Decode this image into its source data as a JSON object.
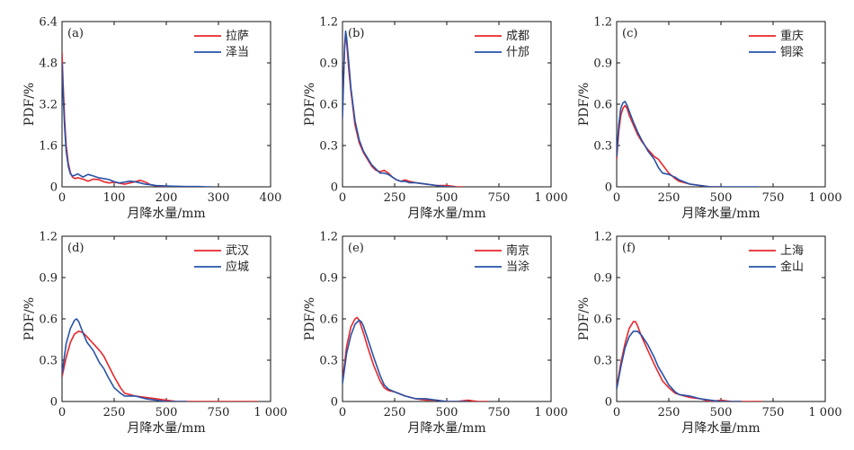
{
  "chart_data": [
    {
      "type": "line",
      "panel_label": "(a)",
      "xlabel": "月降水量/mm",
      "ylabel": "PDF/%",
      "xlim": [
        0,
        400
      ],
      "ylim": [
        0,
        6.4
      ],
      "xticks": [
        0,
        100,
        200,
        300,
        400
      ],
      "xtick_labels": [
        "0",
        "100",
        "200",
        "300",
        "400"
      ],
      "yticks": [
        0,
        1.6,
        3.2,
        4.8,
        6.4
      ],
      "ytick_labels": [
        "0",
        "1.6",
        "3.2",
        "4.8",
        "6.4"
      ],
      "legend_position": "top-right",
      "series": [
        {
          "name": "拉萨",
          "color": "#e8262b",
          "x": [
            0,
            2,
            5,
            8,
            12,
            16,
            20,
            25,
            30,
            40,
            50,
            60,
            70,
            80,
            90,
            100,
            110,
            120,
            130,
            140,
            150,
            160,
            170,
            180,
            200,
            220,
            240,
            260
          ],
          "y": [
            5.2,
            4.0,
            2.6,
            1.6,
            0.9,
            0.55,
            0.38,
            0.32,
            0.35,
            0.3,
            0.22,
            0.3,
            0.28,
            0.2,
            0.15,
            0.18,
            0.14,
            0.1,
            0.15,
            0.2,
            0.25,
            0.18,
            0.08,
            0.04,
            0.02,
            0.01,
            0.0,
            0.0
          ]
        },
        {
          "name": "泽当",
          "color": "#2752a8",
          "x": [
            0,
            2,
            5,
            8,
            12,
            16,
            20,
            25,
            30,
            40,
            50,
            60,
            70,
            80,
            90,
            100,
            110,
            120,
            130,
            140,
            150,
            160,
            170,
            180,
            200,
            220,
            240,
            260,
            280,
            290
          ],
          "y": [
            4.8,
            3.6,
            2.3,
            1.4,
            0.8,
            0.5,
            0.42,
            0.45,
            0.5,
            0.38,
            0.48,
            0.42,
            0.35,
            0.32,
            0.28,
            0.2,
            0.15,
            0.18,
            0.22,
            0.2,
            0.15,
            0.1,
            0.08,
            0.05,
            0.03,
            0.02,
            0.01,
            0.01,
            0.0,
            0.0
          ]
        }
      ]
    },
    {
      "type": "line",
      "panel_label": "(b)",
      "xlabel": "月降水量/mm",
      "ylabel": "PDF/%",
      "xlim": [
        0,
        1000
      ],
      "ylim": [
        0,
        1.2
      ],
      "xticks": [
        0,
        250,
        500,
        750,
        1000
      ],
      "xtick_labels": [
        "0",
        "250",
        "500",
        "750",
        "1 000"
      ],
      "yticks": [
        0,
        0.3,
        0.6,
        0.9,
        1.2
      ],
      "ytick_labels": [
        "0",
        "0.3",
        "0.6",
        "0.9",
        "1.2"
      ],
      "legend_position": "top-right",
      "series": [
        {
          "name": "成都",
          "color": "#e8262b",
          "x": [
            0,
            5,
            10,
            15,
            20,
            30,
            40,
            60,
            80,
            100,
            120,
            140,
            160,
            180,
            200,
            220,
            240,
            260,
            280,
            300,
            320,
            350,
            400,
            450,
            500,
            550,
            580
          ],
          "y": [
            0.55,
            0.8,
            1.0,
            1.1,
            1.05,
            0.85,
            0.7,
            0.45,
            0.32,
            0.25,
            0.2,
            0.15,
            0.12,
            0.11,
            0.12,
            0.1,
            0.07,
            0.05,
            0.04,
            0.05,
            0.04,
            0.03,
            0.02,
            0.01,
            0.01,
            0.0,
            0.0
          ]
        },
        {
          "name": "什邡",
          "color": "#2752a8",
          "x": [
            0,
            5,
            10,
            15,
            20,
            30,
            40,
            60,
            80,
            100,
            120,
            140,
            160,
            180,
            200,
            220,
            240,
            260,
            280,
            300,
            320,
            350,
            400,
            450,
            500,
            540
          ],
          "y": [
            0.5,
            0.78,
            1.02,
            1.13,
            1.08,
            0.9,
            0.72,
            0.48,
            0.34,
            0.26,
            0.21,
            0.16,
            0.13,
            0.1,
            0.1,
            0.09,
            0.07,
            0.05,
            0.04,
            0.04,
            0.03,
            0.03,
            0.02,
            0.01,
            0.0,
            0.0
          ]
        }
      ]
    },
    {
      "type": "line",
      "panel_label": "(c)",
      "xlabel": "月降水量/mm",
      "ylabel": "PDF/%",
      "xlim": [
        0,
        1000
      ],
      "ylim": [
        0,
        1.2
      ],
      "xticks": [
        0,
        250,
        500,
        750,
        1000
      ],
      "xtick_labels": [
        "0",
        "250",
        "500",
        "750",
        "1 000"
      ],
      "yticks": [
        0,
        0.3,
        0.6,
        0.9,
        1.2
      ],
      "ytick_labels": [
        "0",
        "0.3",
        "0.6",
        "0.9",
        "1.2"
      ],
      "legend_position": "top-right",
      "series": [
        {
          "name": "重庆",
          "color": "#e8262b",
          "x": [
            0,
            10,
            20,
            30,
            40,
            50,
            60,
            80,
            100,
            120,
            150,
            180,
            200,
            220,
            250,
            280,
            300,
            350,
            400,
            450,
            500
          ],
          "y": [
            0.2,
            0.4,
            0.52,
            0.57,
            0.59,
            0.57,
            0.52,
            0.45,
            0.38,
            0.33,
            0.27,
            0.22,
            0.2,
            0.16,
            0.1,
            0.06,
            0.04,
            0.02,
            0.01,
            0.0,
            0.0
          ]
        },
        {
          "name": "铜梁",
          "color": "#2752a8",
          "x": [
            0,
            10,
            20,
            30,
            40,
            50,
            60,
            80,
            100,
            120,
            150,
            180,
            200,
            220,
            250,
            280,
            300,
            350,
            400,
            450,
            500,
            550,
            600,
            680
          ],
          "y": [
            0.22,
            0.45,
            0.57,
            0.61,
            0.62,
            0.59,
            0.55,
            0.47,
            0.4,
            0.34,
            0.26,
            0.2,
            0.14,
            0.1,
            0.09,
            0.07,
            0.05,
            0.02,
            0.01,
            0.0,
            0.0,
            0.0,
            0.0,
            0.0
          ]
        }
      ]
    },
    {
      "type": "line",
      "panel_label": "(d)",
      "xlabel": "月降水量/mm",
      "ylabel": "PDF/%",
      "xlim": [
        0,
        1000
      ],
      "ylim": [
        0,
        1.2
      ],
      "xticks": [
        0,
        250,
        500,
        750,
        1000
      ],
      "xtick_labels": [
        "0",
        "250",
        "500",
        "750",
        "1 000"
      ],
      "yticks": [
        0,
        0.3,
        0.6,
        0.9,
        1.2
      ],
      "ytick_labels": [
        "0",
        "0.3",
        "0.6",
        "0.9",
        "1.2"
      ],
      "legend_position": "top-right",
      "series": [
        {
          "name": "武汉",
          "color": "#e8262b",
          "x": [
            0,
            20,
            40,
            60,
            80,
            100,
            120,
            150,
            180,
            200,
            220,
            250,
            280,
            300,
            350,
            400,
            450,
            500,
            550,
            600,
            700,
            800,
            940
          ],
          "y": [
            0.18,
            0.32,
            0.43,
            0.49,
            0.51,
            0.5,
            0.47,
            0.42,
            0.37,
            0.33,
            0.27,
            0.18,
            0.1,
            0.06,
            0.04,
            0.03,
            0.02,
            0.01,
            0.0,
            0.0,
            0.0,
            0.0,
            0.0
          ]
        },
        {
          "name": "应城",
          "color": "#2752a8",
          "x": [
            0,
            20,
            40,
            60,
            70,
            80,
            100,
            120,
            150,
            180,
            200,
            220,
            250,
            280,
            300,
            350,
            400,
            450,
            500,
            550,
            600
          ],
          "y": [
            0.2,
            0.42,
            0.53,
            0.59,
            0.6,
            0.58,
            0.5,
            0.43,
            0.37,
            0.28,
            0.24,
            0.18,
            0.1,
            0.06,
            0.04,
            0.04,
            0.02,
            0.01,
            0.0,
            0.0,
            0.0
          ]
        }
      ]
    },
    {
      "type": "line",
      "panel_label": "(e)",
      "xlabel": "月降水量/mm",
      "ylabel": "PDF/%",
      "xlim": [
        0,
        1000
      ],
      "ylim": [
        0,
        1.2
      ],
      "xticks": [
        0,
        250,
        500,
        750,
        1000
      ],
      "xtick_labels": [
        "0",
        "250",
        "500",
        "750",
        "1 000"
      ],
      "yticks": [
        0,
        0.3,
        0.6,
        0.9,
        1.2
      ],
      "ytick_labels": [
        "0",
        "0.3",
        "0.6",
        "0.9",
        "1.2"
      ],
      "legend_position": "top-right",
      "series": [
        {
          "name": "南京",
          "color": "#e8262b",
          "x": [
            0,
            20,
            40,
            60,
            70,
            80,
            100,
            120,
            150,
            180,
            200,
            220,
            250,
            300,
            350,
            400,
            450,
            500,
            550,
            600,
            650,
            700
          ],
          "y": [
            0.15,
            0.4,
            0.54,
            0.6,
            0.61,
            0.59,
            0.5,
            0.4,
            0.26,
            0.15,
            0.1,
            0.08,
            0.07,
            0.04,
            0.02,
            0.01,
            0.01,
            0.0,
            0.0,
            0.01,
            0.0,
            0.0
          ]
        },
        {
          "name": "当涂",
          "color": "#2752a8",
          "x": [
            0,
            20,
            40,
            60,
            80,
            90,
            100,
            120,
            150,
            180,
            200,
            220,
            250,
            300,
            350,
            400,
            450,
            500,
            550,
            600
          ],
          "y": [
            0.13,
            0.35,
            0.48,
            0.56,
            0.59,
            0.58,
            0.55,
            0.46,
            0.32,
            0.19,
            0.12,
            0.09,
            0.07,
            0.04,
            0.02,
            0.02,
            0.01,
            0.0,
            0.0,
            0.0
          ]
        }
      ]
    },
    {
      "type": "line",
      "panel_label": "(f)",
      "xlabel": "月降水量/mm",
      "ylabel": "PDF/%",
      "xlim": [
        0,
        1000
      ],
      "ylim": [
        0,
        1.2
      ],
      "xticks": [
        0,
        250,
        500,
        750,
        1000
      ],
      "xtick_labels": [
        "0",
        "250",
        "500",
        "750",
        "1 000"
      ],
      "yticks": [
        0,
        0.3,
        0.6,
        0.9,
        1.2
      ],
      "ytick_labels": [
        "0",
        "0.3",
        "0.6",
        "0.9",
        "1.2"
      ],
      "legend_position": "top-right",
      "series": [
        {
          "name": "上海",
          "color": "#e8262b",
          "x": [
            0,
            20,
            40,
            60,
            80,
            90,
            100,
            120,
            150,
            180,
            200,
            220,
            250,
            280,
            300,
            350,
            400,
            450,
            500,
            550,
            600,
            650,
            700
          ],
          "y": [
            0.1,
            0.28,
            0.42,
            0.53,
            0.58,
            0.58,
            0.55,
            0.47,
            0.37,
            0.27,
            0.21,
            0.15,
            0.1,
            0.06,
            0.05,
            0.03,
            0.02,
            0.0,
            0.01,
            0.0,
            0.0,
            0.0,
            0.0
          ]
        },
        {
          "name": "金山",
          "color": "#2752a8",
          "x": [
            0,
            20,
            40,
            60,
            80,
            100,
            120,
            150,
            180,
            200,
            220,
            250,
            280,
            300,
            350,
            400,
            450,
            500,
            550,
            600
          ],
          "y": [
            0.09,
            0.25,
            0.39,
            0.47,
            0.51,
            0.51,
            0.48,
            0.41,
            0.32,
            0.25,
            0.2,
            0.12,
            0.07,
            0.05,
            0.04,
            0.02,
            0.01,
            0.0,
            0.0,
            0.0
          ]
        }
      ]
    }
  ]
}
